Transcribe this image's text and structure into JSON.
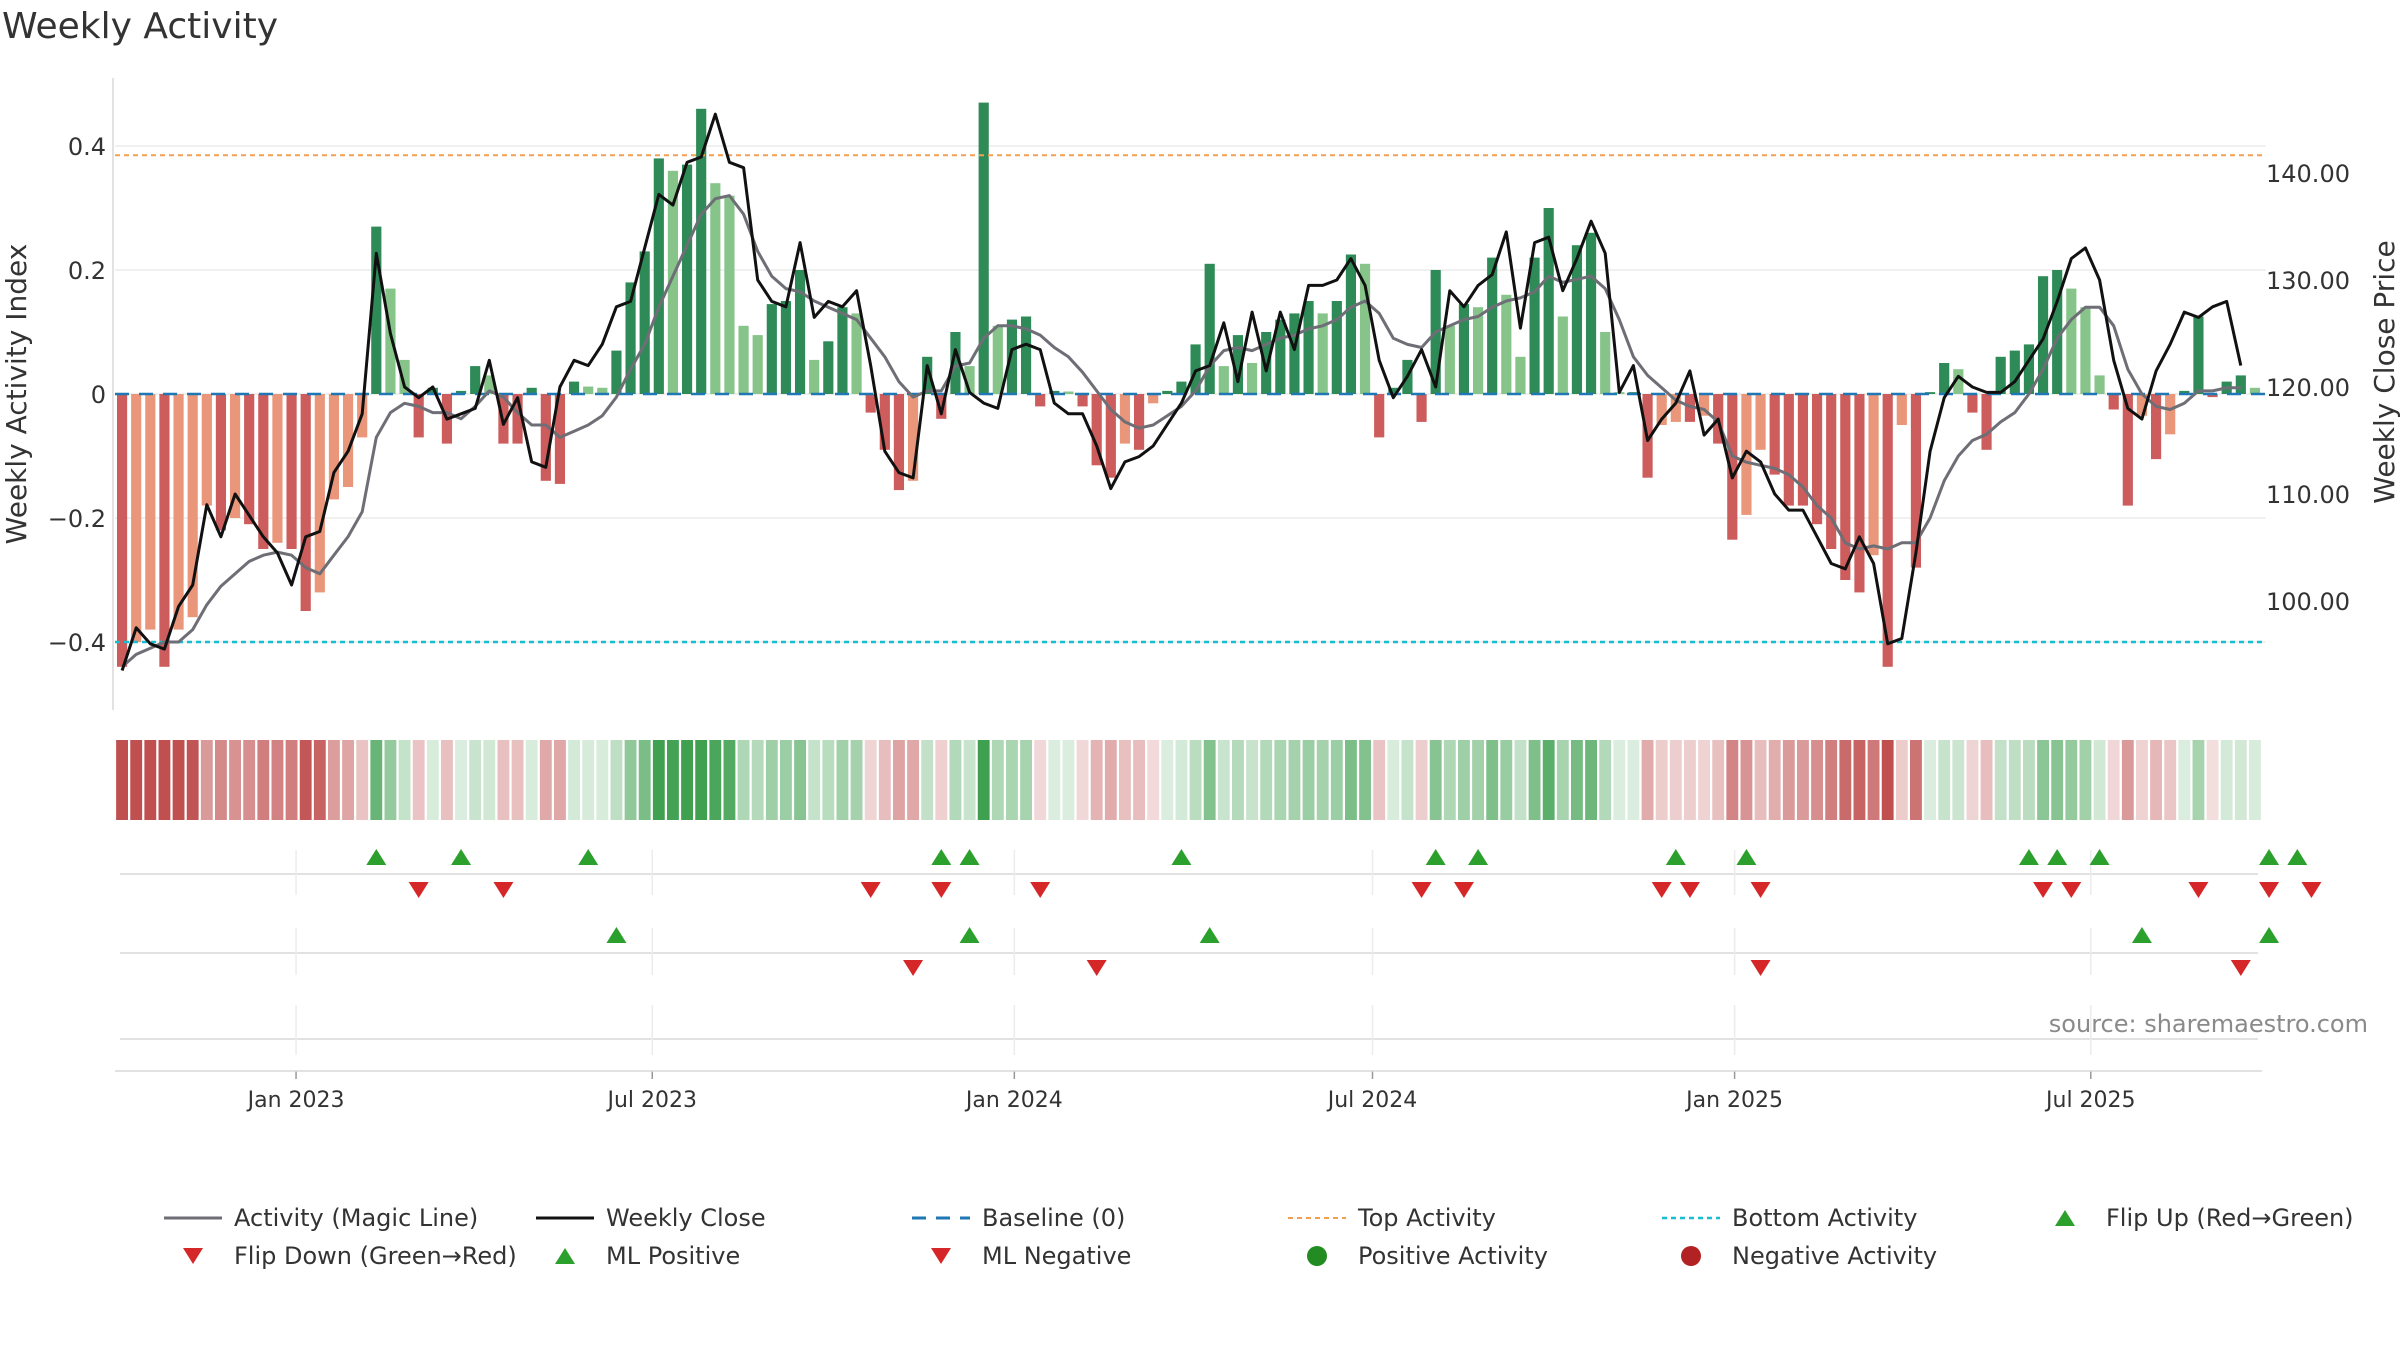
{
  "title": "Weekly Activity",
  "source": "source: sharemaestro.com",
  "colors": {
    "strong_green": "#2e8b57",
    "light_green": "#86c48a",
    "strong_red": "#cd5c5c",
    "light_red": "#e9967a",
    "magic_line": "#6e6e76",
    "close_line": "#111111",
    "baseline": "#1f77b4",
    "top_line": "#f0a050",
    "bottom_line": "#17becf",
    "up_marker": "#2ca02c",
    "down_marker": "#d62728"
  },
  "legend": [
    {
      "key": "magic",
      "label": "Activity (Magic Line)"
    },
    {
      "key": "close",
      "label": "Weekly Close"
    },
    {
      "key": "baseline",
      "label": "Baseline (0)"
    },
    {
      "key": "top",
      "label": "Top Activity"
    },
    {
      "key": "bottom",
      "label": "Bottom Activity"
    },
    {
      "key": "flipup",
      "label": "Flip Up (Red→Green)"
    },
    {
      "key": "flipdown",
      "label": "Flip Down (Green→Red)"
    },
    {
      "key": "mlpos",
      "label": "ML Positive"
    },
    {
      "key": "mlneg",
      "label": "ML Negative"
    },
    {
      "key": "posact",
      "label": "Positive Activity"
    },
    {
      "key": "negact",
      "label": "Negative Activity"
    }
  ],
  "chart_data": {
    "type": "bar",
    "title": "Weekly Activity",
    "ylabel": "Weekly Activity Index",
    "ylabel_right": "Weekly Close Price",
    "ylim": [
      -0.5,
      0.5
    ],
    "ylim_right": [
      92,
      150
    ],
    "yticks": [
      -0.4,
      -0.2,
      0,
      0.2,
      0.4
    ],
    "ytick_labels": [
      "−0.4",
      "−0.2",
      "0",
      "0.2",
      "0.4"
    ],
    "yticks_right": [
      100,
      110,
      120,
      130,
      140
    ],
    "ytick_labels_right": [
      "100.00",
      "110.00",
      "120.00",
      "130.00",
      "140.00"
    ],
    "top_activity": 0.385,
    "bottom_activity": -0.4,
    "baseline": 0,
    "x_start": "2022-10-01",
    "x_end": "2025-09-26",
    "xticks": [
      {
        "date": "2023-01-01",
        "label": "Jan 2023"
      },
      {
        "date": "2023-07-01",
        "label": "Jul 2023"
      },
      {
        "date": "2024-01-01",
        "label": "Jan 2024"
      },
      {
        "date": "2024-07-01",
        "label": "Jul 2024"
      },
      {
        "date": "2025-01-01",
        "label": "Jan 2025"
      },
      {
        "date": "2025-07-01",
        "label": "Jul 2025"
      }
    ],
    "activity": [
      -0.44,
      -0.4,
      -0.38,
      -0.44,
      -0.38,
      -0.36,
      -0.18,
      -0.22,
      -0.2,
      -0.21,
      -0.25,
      -0.24,
      -0.25,
      -0.35,
      -0.32,
      -0.17,
      -0.15,
      -0.07,
      0.27,
      0.17,
      0.055,
      -0.07,
      0.01,
      -0.08,
      0.005,
      0.045,
      0.03,
      -0.08,
      -0.08,
      0.01,
      -0.14,
      -0.145,
      0.02,
      0.012,
      0.01,
      0.07,
      0.18,
      0.23,
      0.38,
      0.36,
      0.37,
      0.46,
      0.34,
      0.32,
      0.11,
      0.095,
      0.145,
      0.15,
      0.2,
      0.055,
      0.085,
      0.14,
      0.13,
      -0.03,
      -0.09,
      -0.155,
      -0.14,
      0.06,
      -0.04,
      0.1,
      0.045,
      0.47,
      0.11,
      0.12,
      0.125,
      -0.02,
      0.005,
      0.004,
      -0.02,
      -0.115,
      -0.135,
      -0.08,
      -0.09,
      -0.015,
      0.005,
      0.02,
      0.08,
      0.21,
      0.045,
      0.095,
      0.05,
      0.1,
      0.12,
      0.13,
      0.15,
      0.13,
      0.15,
      0.225,
      0.21,
      -0.07,
      0.01,
      0.055,
      -0.045,
      0.2,
      0.11,
      0.145,
      0.14,
      0.22,
      0.16,
      0.06,
      0.22,
      0.3,
      0.125,
      0.24,
      0.26,
      0.1,
      0.003,
      0.003,
      -0.135,
      -0.05,
      -0.045,
      -0.045,
      -0.035,
      -0.08,
      -0.235,
      -0.195,
      -0.09,
      -0.13,
      -0.18,
      -0.18,
      -0.21,
      -0.25,
      -0.3,
      -0.32,
      -0.26,
      -0.44,
      -0.05,
      -0.28,
      0.003,
      0.05,
      0.04,
      -0.03,
      -0.09,
      0.06,
      0.07,
      0.08,
      0.19,
      0.2,
      0.17,
      0.14,
      0.03,
      -0.025,
      -0.18,
      -0.035,
      -0.105,
      -0.065,
      0.005,
      0.125,
      -0.005,
      0.02,
      0.03,
      0.01
    ],
    "magic_line": [
      -0.44,
      -0.42,
      -0.41,
      -0.4,
      -0.4,
      -0.38,
      -0.34,
      -0.31,
      -0.29,
      -0.27,
      -0.26,
      -0.255,
      -0.26,
      -0.28,
      -0.29,
      -0.26,
      -0.23,
      -0.19,
      -0.07,
      -0.03,
      -0.015,
      -0.02,
      -0.03,
      -0.03,
      -0.04,
      -0.02,
      0.005,
      -0.005,
      -0.03,
      -0.05,
      -0.05,
      -0.07,
      -0.06,
      -0.05,
      -0.035,
      -0.005,
      0.04,
      0.08,
      0.14,
      0.19,
      0.24,
      0.29,
      0.315,
      0.32,
      0.29,
      0.23,
      0.19,
      0.17,
      0.165,
      0.15,
      0.14,
      0.13,
      0.12,
      0.09,
      0.06,
      0.02,
      -0.005,
      0.005,
      0.005,
      0.045,
      0.05,
      0.09,
      0.11,
      0.11,
      0.105,
      0.095,
      0.075,
      0.06,
      0.035,
      0.005,
      -0.025,
      -0.045,
      -0.055,
      -0.05,
      -0.035,
      -0.02,
      0.005,
      0.045,
      0.07,
      0.075,
      0.07,
      0.08,
      0.09,
      0.095,
      0.105,
      0.11,
      0.12,
      0.14,
      0.15,
      0.13,
      0.09,
      0.08,
      0.075,
      0.1,
      0.11,
      0.12,
      0.125,
      0.14,
      0.15,
      0.155,
      0.165,
      0.19,
      0.18,
      0.185,
      0.19,
      0.17,
      0.12,
      0.06,
      0.03,
      0.01,
      -0.01,
      -0.02,
      -0.025,
      -0.045,
      -0.1,
      -0.11,
      -0.115,
      -0.12,
      -0.13,
      -0.15,
      -0.18,
      -0.2,
      -0.24,
      -0.25,
      -0.245,
      -0.25,
      -0.24,
      -0.24,
      -0.2,
      -0.14,
      -0.1,
      -0.075,
      -0.065,
      -0.045,
      -0.03,
      0.0,
      0.04,
      0.09,
      0.12,
      0.14,
      0.14,
      0.11,
      0.04,
      0.0,
      -0.02,
      -0.025,
      -0.015,
      0.005,
      0.005,
      0.01,
      0.01
    ],
    "weekly_close": [
      93.5,
      97.5,
      96.0,
      95.5,
      99.5,
      101.5,
      109.0,
      106.0,
      110.0,
      108.0,
      106.0,
      104.5,
      101.5,
      106.0,
      106.5,
      112.0,
      114.0,
      117.5,
      132.5,
      125.0,
      120.0,
      119.0,
      120.0,
      117.0,
      117.5,
      118.0,
      122.5,
      116.5,
      119.0,
      113.0,
      112.5,
      120.0,
      122.5,
      122.0,
      124.0,
      127.5,
      128.0,
      133.0,
      138.0,
      137.0,
      141.0,
      141.5,
      145.5,
      141.0,
      140.5,
      130.0,
      128.0,
      127.5,
      133.5,
      126.5,
      128.0,
      127.5,
      129.0,
      122.0,
      114.0,
      112.0,
      111.5,
      122.0,
      117.5,
      123.5,
      119.5,
      118.5,
      118.0,
      123.5,
      124.0,
      123.5,
      118.5,
      117.5,
      117.5,
      114.5,
      110.5,
      113.0,
      113.5,
      114.5,
      116.5,
      118.5,
      121.5,
      122.0,
      126.0,
      120.5,
      127.0,
      121.5,
      127.0,
      123.5,
      129.5,
      129.5,
      130.0,
      132.0,
      129.5,
      122.5,
      119.0,
      121.0,
      123.5,
      120.0,
      129.0,
      127.5,
      129.5,
      130.5,
      134.5,
      125.5,
      133.5,
      134.0,
      129.0,
      132.0,
      135.5,
      132.5,
      119.5,
      122.0,
      115.0,
      117.0,
      118.5,
      121.5,
      115.5,
      117.0,
      111.5,
      114.0,
      113.0,
      110.0,
      108.5,
      108.5,
      106.0,
      103.5,
      103.0,
      106.0,
      103.5,
      96.0,
      96.5,
      104.5,
      114.0,
      119.0,
      121.0,
      120.0,
      119.5,
      119.5,
      120.5,
      122.5,
      124.5,
      128.0,
      132.0,
      133.0,
      130.0,
      122.5,
      118.0,
      117.0,
      121.5,
      124.0,
      127.0,
      126.5,
      127.5,
      128.0,
      122.0
    ],
    "heatmap_strip": {
      "description": "Per-week shading strip under the main panel; colour intensity follows the activity value (red = negative, green = positive)."
    },
    "flip_up_weeks": [
      18,
      24,
      33,
      58,
      60,
      75,
      93,
      96,
      110,
      115,
      135,
      137,
      140,
      152,
      154
    ],
    "flip_down_weeks": [
      21,
      27,
      53,
      58,
      65,
      92,
      95,
      109,
      111,
      116,
      136,
      138,
      147,
      152,
      155
    ],
    "ml_positive_weeks": [
      35,
      60,
      77,
      143,
      152
    ],
    "ml_negative_weeks": [
      56,
      69,
      116,
      150
    ]
  }
}
